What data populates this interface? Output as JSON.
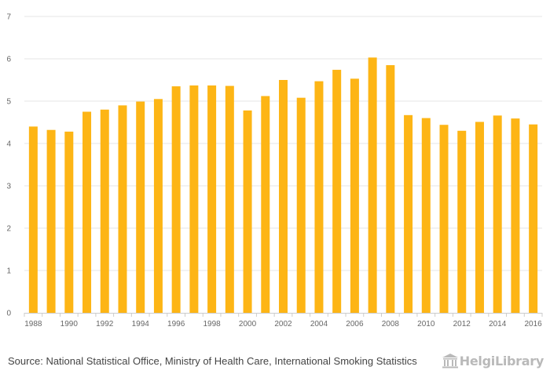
{
  "chart_data": {
    "type": "bar",
    "categories": [
      "1988",
      "1989",
      "1990",
      "1991",
      "1992",
      "1993",
      "1994",
      "1995",
      "1996",
      "1997",
      "1998",
      "1999",
      "2000",
      "2001",
      "2002",
      "2003",
      "2004",
      "2005",
      "2006",
      "2007",
      "2008",
      "2009",
      "2010",
      "2011",
      "2012",
      "2013",
      "2014",
      "2015",
      "2016"
    ],
    "x_tick_labels": [
      "1988",
      "1990",
      "1992",
      "1994",
      "1996",
      "1998",
      "2000",
      "2002",
      "2004",
      "2006",
      "2008",
      "2010",
      "2012",
      "2014",
      "2016"
    ],
    "values": [
      4.4,
      4.32,
      4.28,
      4.75,
      4.8,
      4.9,
      4.99,
      5.05,
      5.35,
      5.37,
      5.37,
      5.36,
      4.78,
      5.12,
      5.5,
      5.08,
      5.47,
      5.74,
      5.53,
      6.03,
      5.85,
      4.67,
      4.6,
      4.44,
      4.3,
      4.51,
      4.66,
      4.59,
      4.45
    ],
    "y_ticks": [
      "0",
      "1",
      "2",
      "3",
      "4",
      "5",
      "6",
      "7"
    ],
    "ylim": [
      0,
      7
    ],
    "title": "",
    "xlabel": "",
    "ylabel": "",
    "grid": true,
    "bar_color": "#FDB515",
    "grid_color": "#e6e6e6"
  },
  "footer": {
    "source_label": "Source:",
    "source_text": "National Statistical Office, Ministry of Health Care, International Smoking Statistics",
    "logo_text": "HelgiLibrary"
  }
}
